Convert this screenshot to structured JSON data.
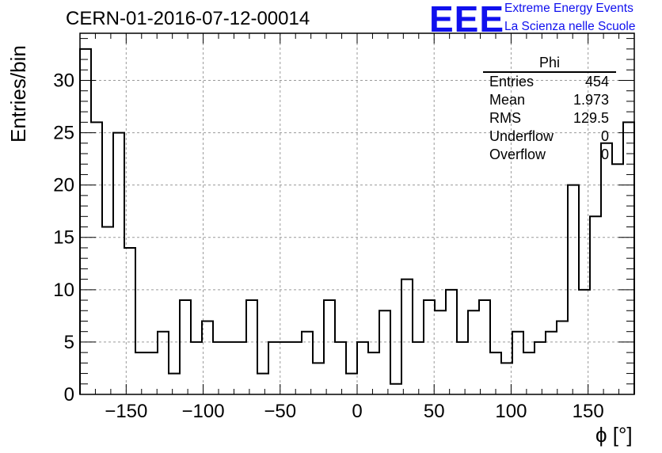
{
  "title": "CERN-01-2016-07-12-00014",
  "logo": {
    "mark": "EEE",
    "line1": "Extreme Energy Events",
    "line2": "La Scienza nelle Scuole"
  },
  "stats": {
    "name": "Phi",
    "rows": [
      {
        "label": "Entries",
        "value": "454"
      },
      {
        "label": "Mean",
        "value": "1.973"
      },
      {
        "label": "RMS",
        "value": "129.5"
      },
      {
        "label": "Underflow",
        "value": "0"
      },
      {
        "label": "Overflow",
        "value": "0"
      }
    ]
  },
  "chart_data": {
    "type": "histogram",
    "title": "CERN-01-2016-07-12-00014",
    "xlabel": "ϕ [°]",
    "ylabel": "Entries/bin",
    "xlim": [
      -180,
      180
    ],
    "ylim": [
      0,
      34.5
    ],
    "bin_width": 7.2,
    "x_ticks": [
      -150,
      -100,
      -50,
      0,
      50,
      100,
      150
    ],
    "x_tick_labels": [
      "−150",
      "−100",
      "−50",
      "0",
      "50",
      "100",
      "150"
    ],
    "y_ticks": [
      0,
      5,
      10,
      15,
      20,
      25,
      30
    ],
    "grid": true,
    "line_color": "#000000",
    "counts": [
      33,
      26,
      16,
      25,
      14,
      4,
      4,
      6,
      2,
      9,
      5,
      7,
      5,
      5,
      5,
      9,
      2,
      5,
      5,
      5,
      6,
      3,
      9,
      5,
      2,
      5,
      4,
      8,
      1,
      11,
      5,
      9,
      8,
      10,
      5,
      8,
      9,
      4,
      3,
      6,
      4,
      5,
      6,
      7,
      20,
      10,
      17,
      24,
      22,
      26
    ]
  }
}
